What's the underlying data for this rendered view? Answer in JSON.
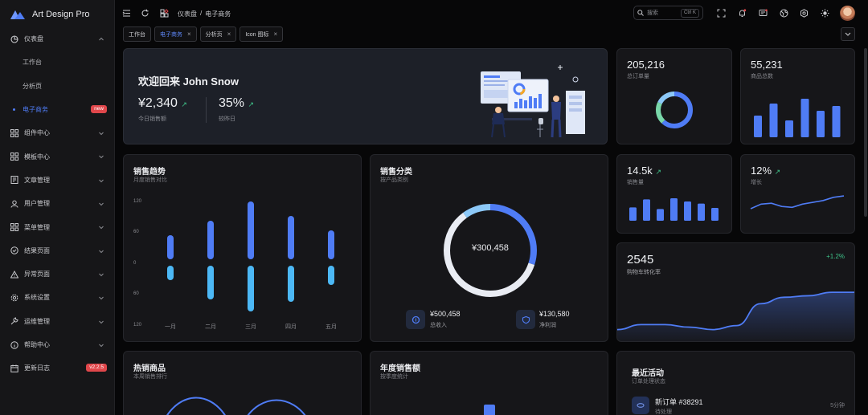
{
  "app": {
    "name": "Art Design Pro"
  },
  "sidebar": {
    "items": [
      {
        "label": "仪表盘",
        "icon": "dashboard-icon"
      },
      {
        "label": "工作台"
      },
      {
        "label": "分析页"
      },
      {
        "label": "电子商务",
        "badge": "new"
      },
      {
        "label": "组件中心",
        "icon": "grid-icon"
      },
      {
        "label": "模板中心",
        "icon": "grid-icon"
      },
      {
        "label": "文章管理",
        "icon": "article-icon"
      },
      {
        "label": "用户管理",
        "icon": "user-icon"
      },
      {
        "label": "菜单管理",
        "icon": "grid-icon"
      },
      {
        "label": "结果页面",
        "icon": "check-circle-icon"
      },
      {
        "label": "异常页面",
        "icon": "warning-icon"
      },
      {
        "label": "系统设置",
        "icon": "gear-icon"
      },
      {
        "label": "运维管理",
        "icon": "wrench-icon"
      },
      {
        "label": "帮助中心",
        "icon": "info-icon"
      },
      {
        "label": "更新日志",
        "icon": "calendar-icon",
        "badge": "v2.2.5"
      }
    ]
  },
  "topbar": {
    "breadcrumb": [
      "仪表盘",
      "/",
      "电子商务"
    ],
    "search_placeholder": "搜索",
    "search_shortcut": "Ctrl K"
  },
  "tabs": [
    {
      "label": "工作台",
      "closable": false
    },
    {
      "label": "电子商务",
      "closable": true,
      "active": true
    },
    {
      "label": "分析页",
      "closable": true
    },
    {
      "label": "Icon 图标",
      "closable": true
    }
  ],
  "welcome": {
    "title": "欢迎回来 John Snow",
    "sales_value": "¥2,340",
    "sales_label": "今日销售额",
    "growth_value": "35%",
    "growth_label": "较昨日"
  },
  "stats": {
    "orders": {
      "value": "205,216",
      "label": "总订单量"
    },
    "products": {
      "value": "55,231",
      "label": "商品总数"
    },
    "sales": {
      "value": "14.5k",
      "label": "销售量"
    },
    "growth": {
      "value": "12%",
      "label": "增长"
    },
    "conversion": {
      "value": "2545",
      "label": "购物车转化率",
      "change": "+1.2%"
    }
  },
  "sales_trend": {
    "title": "销售趋势",
    "subtitle": "月度销售对比",
    "yticks": [
      "120",
      "60",
      "0",
      "60",
      "120"
    ],
    "months": [
      "一月",
      "二月",
      "三月",
      "四月",
      "五月"
    ]
  },
  "category": {
    "title": "销售分类",
    "subtitle": "按产品类别",
    "center": "¥300,458",
    "revenue_value": "¥500,458",
    "revenue_label": "总收入",
    "profit_value": "¥130,580",
    "profit_label": "净利润"
  },
  "hot": {
    "title": "热销商品",
    "subtitle": "本周销售排行"
  },
  "annual": {
    "title": "年度销售额",
    "subtitle": "按季度统计"
  },
  "activity": {
    "title": "最近活动",
    "subtitle": "订单处理状态",
    "items": [
      {
        "title": "新订单 #38291",
        "status": "待处理",
        "time": "5分钟"
      }
    ]
  },
  "chart_data": [
    {
      "type": "bar",
      "title": "销售趋势",
      "categories": [
        "一月",
        "二月",
        "三月",
        "四月",
        "五月"
      ],
      "series": [
        {
          "values": [
            50,
            80,
            120,
            90,
            60
          ]
        },
        {
          "values": [
            30,
            70,
            95,
            75,
            40
          ]
        }
      ],
      "ylim": [
        -120,
        120
      ],
      "colors": [
        "#4f7cf5",
        "#4cb8f5"
      ]
    },
    {
      "type": "pie",
      "title": "销售分类",
      "values": [
        30,
        60,
        10
      ],
      "colors": [
        "#4f7cf5",
        "#e9ecf3",
        "#8cc8f7"
      ]
    },
    {
      "type": "pie",
      "values": [
        62,
        20,
        18
      ],
      "colors": [
        "#4f7cf5",
        "#79d7a9",
        "#8cc8f7"
      ]
    },
    {
      "type": "bar",
      "values": [
        45,
        70,
        35,
        80,
        55,
        65
      ],
      "colors": [
        "#4f7cf5"
      ]
    },
    {
      "type": "bar",
      "values": [
        25,
        40,
        22,
        42,
        36,
        32,
        24
      ],
      "colors": [
        "#4f7cf5"
      ]
    },
    {
      "type": "line",
      "values": [
        30,
        40,
        42,
        35,
        33,
        40,
        44,
        48,
        55,
        58
      ]
    },
    {
      "type": "area",
      "values": [
        20,
        30,
        30,
        25,
        20,
        28,
        72,
        85,
        88,
        95,
        95
      ]
    }
  ]
}
